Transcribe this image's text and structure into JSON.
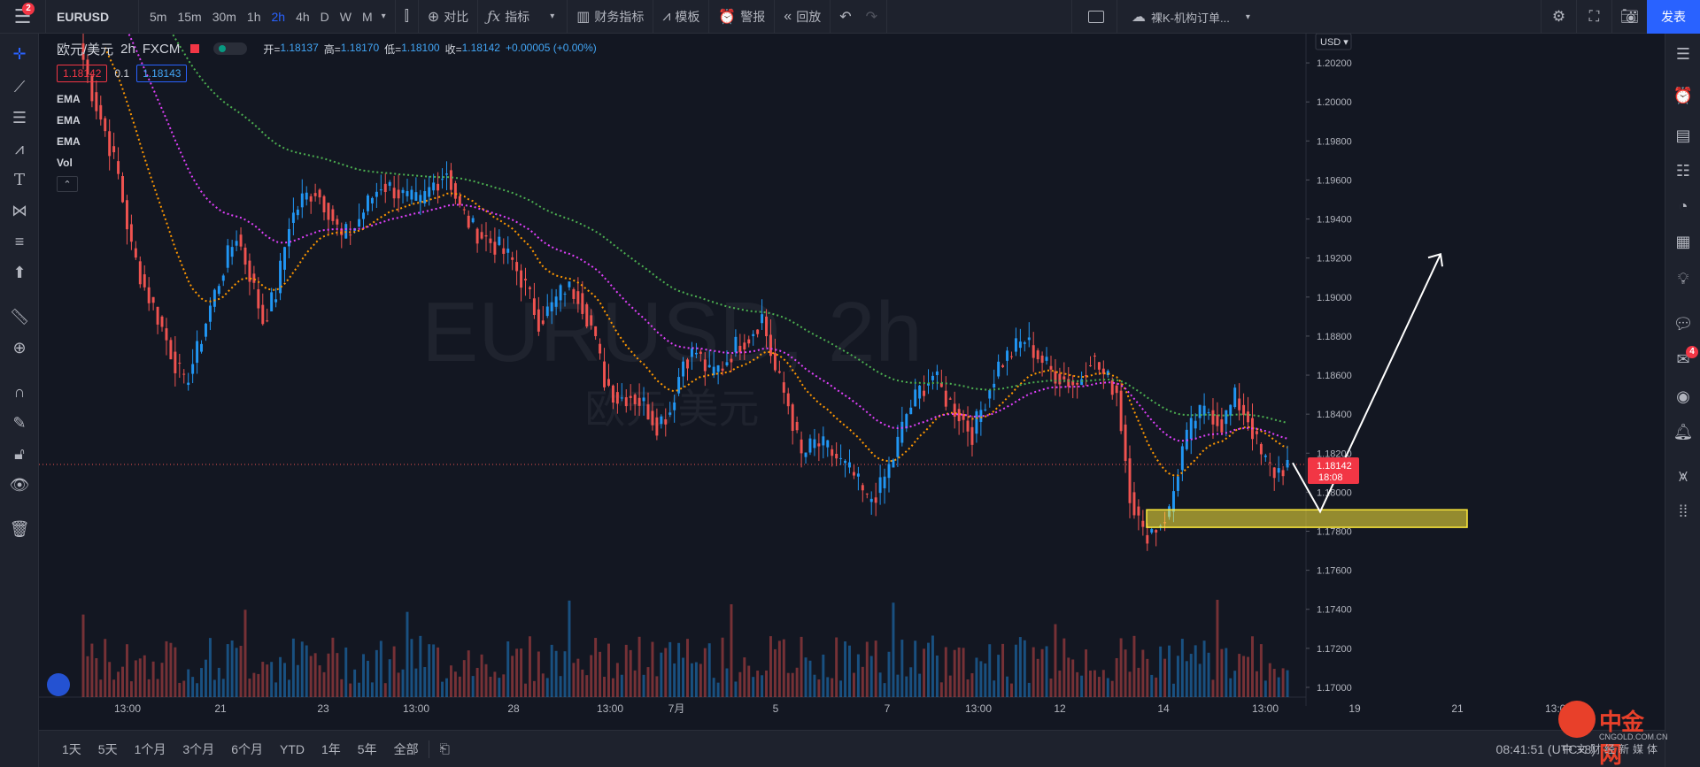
{
  "topbar": {
    "menu_badge": "2",
    "symbol": "EURUSD",
    "intervals": [
      "5m",
      "15m",
      "30m",
      "1h",
      "2h",
      "4h",
      "D",
      "W",
      "M"
    ],
    "active_interval": "2h",
    "compare_label": "对比",
    "indicators_label": "指标",
    "financials_label": "财务指标",
    "templates_label": "模板",
    "alert_label": "警报",
    "replay_label": "回放",
    "layout_name": "裸K-机构订单...",
    "publish_label": "发表"
  },
  "legend": {
    "title": "欧元/美元",
    "interval": "2h",
    "exchange": "FXCM",
    "open_label": "开=",
    "open": "1.18137",
    "high_label": "高=",
    "high": "1.18170",
    "low_label": "低=",
    "low": "1.18100",
    "close_label": "收=",
    "close": "1.18142",
    "change": "+0.00005 (+0.00%)",
    "bid": "1.18142",
    "spread": "0.1",
    "ask": "1.18143",
    "indicators": [
      "EMA",
      "EMA",
      "EMA",
      "Vol"
    ]
  },
  "price_axis": {
    "currency": "USD",
    "current_price": "1.18142",
    "countdown": "18:08",
    "current_color": "#f23645"
  },
  "chart_data": {
    "type": "candlestick",
    "watermark_symbol": "EURUSD, 2h",
    "watermark_name": "欧元/美元",
    "y_ticks": [
      "1.20200",
      "1.20000",
      "1.19800",
      "1.19600",
      "1.19400",
      "1.19200",
      "1.19000",
      "1.18800",
      "1.18600",
      "1.18400",
      "1.18200",
      "1.18000",
      "1.17800",
      "1.17600",
      "1.17400",
      "1.17200",
      "1.17000"
    ],
    "ylim": [
      1.1695,
      1.2035
    ],
    "x_ticks": [
      "13:00",
      "21",
      "23",
      "13:00",
      "28",
      "13:00",
      "7月",
      "5",
      "7",
      "13:00",
      "12",
      "14",
      "13:00",
      "19",
      "21",
      "13:00"
    ],
    "ema_colors": [
      "#ff9800",
      "#e040fb",
      "#4caf50"
    ],
    "up_color": "#2196f3",
    "down_color": "#ef5350",
    "zone": {
      "low": 1.1782,
      "high": 1.1791,
      "color": "#ffeb3b"
    },
    "close_path": [
      1.203,
      1.2005,
      1.1985,
      1.1962,
      1.1925,
      1.1905,
      1.189,
      1.1872,
      1.1855,
      1.1872,
      1.1895,
      1.1915,
      1.1932,
      1.1912,
      1.1888,
      1.1902,
      1.1938,
      1.195,
      1.1955,
      1.1945,
      1.193,
      1.1936,
      1.1948,
      1.1958,
      1.1955,
      1.195,
      1.1948,
      1.1958,
      1.1965,
      1.1945,
      1.1935,
      1.193,
      1.1925,
      1.1918,
      1.1905,
      1.1888,
      1.1895,
      1.1905,
      1.1902,
      1.1885,
      1.1858,
      1.1848,
      1.185,
      1.1845,
      1.1835,
      1.1842,
      1.1868,
      1.1872,
      1.186,
      1.1865,
      1.1875,
      1.188,
      1.189,
      1.1862,
      1.1845,
      1.1818,
      1.1825,
      1.1822,
      1.1815,
      1.1808,
      1.1795,
      1.1802,
      1.1818,
      1.184,
      1.1852,
      1.186,
      1.1848,
      1.184,
      1.183,
      1.1848,
      1.1865,
      1.1872,
      1.1878,
      1.187,
      1.1862,
      1.1858,
      1.1855,
      1.187,
      1.186,
      1.1852,
      1.18,
      1.1778,
      1.1782,
      1.179,
      1.1822,
      1.1838,
      1.1842,
      1.1835,
      1.1848,
      1.1838,
      1.1818,
      1.181,
      1.1814
    ],
    "projection": {
      "from": 1.1815,
      "dip": 1.179,
      "target": 1.1922
    }
  },
  "bottombar": {
    "ranges": [
      "1天",
      "5天",
      "1个月",
      "3个月",
      "6个月",
      "YTD",
      "1年",
      "5年",
      "全部"
    ],
    "time": "08:41:51 (UTC+8)"
  },
  "righttb": {
    "badge": "4"
  },
  "logo": {
    "name": "中金网",
    "url_text": "CNGOLD.COM.CN",
    "tagline": "中文财经新媒体"
  }
}
